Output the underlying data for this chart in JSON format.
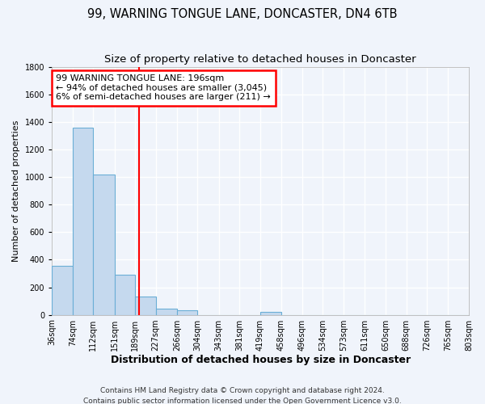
{
  "title": "99, WARNING TONGUE LANE, DONCASTER, DN4 6TB",
  "subtitle": "Size of property relative to detached houses in Doncaster",
  "xlabel": "Distribution of detached houses by size in Doncaster",
  "ylabel": "Number of detached properties",
  "bar_edges": [
    36,
    74,
    112,
    151,
    189,
    227,
    266,
    304,
    343,
    381,
    419,
    458,
    496,
    534,
    573,
    611,
    650,
    688,
    726,
    765,
    803
  ],
  "bar_values": [
    355,
    1360,
    1020,
    290,
    130,
    45,
    35,
    0,
    0,
    0,
    20,
    0,
    0,
    0,
    0,
    0,
    0,
    0,
    0,
    0
  ],
  "bar_color": "#c5d9ee",
  "bar_edgecolor": "#6aaed6",
  "red_line_x": 196,
  "ylim": [
    0,
    1800
  ],
  "yticks": [
    0,
    200,
    400,
    600,
    800,
    1000,
    1200,
    1400,
    1600,
    1800
  ],
  "annotation_title": "99 WARNING TONGUE LANE: 196sqm",
  "annotation_line1": "← 94% of detached houses are smaller (3,045)",
  "annotation_line2": "6% of semi-detached houses are larger (211) →",
  "footer_line1": "Contains HM Land Registry data © Crown copyright and database right 2024.",
  "footer_line2": "Contains public sector information licensed under the Open Government Licence v3.0.",
  "bg_color": "#f0f4fb",
  "grid_color": "#ffffff",
  "title_fontsize": 10.5,
  "subtitle_fontsize": 9.5,
  "ylabel_fontsize": 8,
  "xlabel_fontsize": 9,
  "tick_fontsize": 7,
  "annotation_fontsize": 8,
  "footer_fontsize": 6.5
}
